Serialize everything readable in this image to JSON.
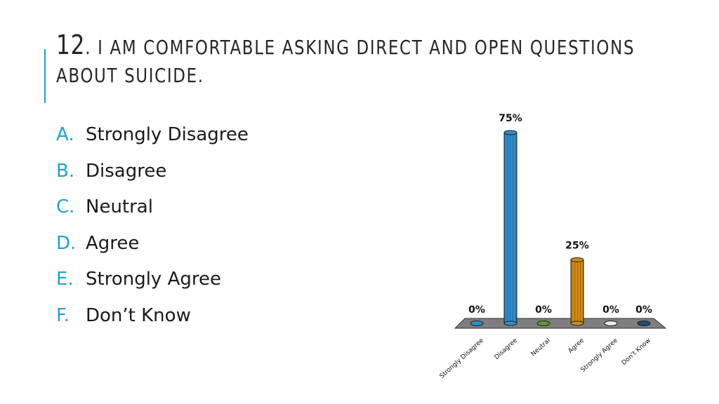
{
  "title": {
    "number": "12",
    "text": ". I am comfortable asking direct and open questions"
  },
  "title_line2": "about suicide.",
  "options": [
    {
      "letter": "A.",
      "label": "Strongly Disagree"
    },
    {
      "letter": "B.",
      "label": "Disagree"
    },
    {
      "letter": "C.",
      "label": "Neutral"
    },
    {
      "letter": "D.",
      "label": "Agree"
    },
    {
      "letter": "E.",
      "label": "Strongly Agree"
    },
    {
      "letter": "F.",
      "label": "Don’t Know"
    }
  ],
  "colors": {
    "accent": "#1fa3c9",
    "floor": "#7f7f7f"
  },
  "chart_data": {
    "type": "bar",
    "categories": [
      "Strongly Disagree",
      "Disagree",
      "Neutral",
      "Agree",
      "Strongly Agree",
      "Don’t Know"
    ],
    "values": [
      0,
      75,
      0,
      25,
      0,
      0
    ],
    "data_labels": [
      "0%",
      "75%",
      "0%",
      "25%",
      "0%",
      "0%"
    ],
    "colors": [
      "#2e8fd0",
      "#2e8fd0",
      "#5f9a2c",
      "#d68a10",
      "#e8e8e8",
      "#1f4e79"
    ],
    "ylim": [
      0,
      75
    ],
    "grid": false,
    "legend": "none",
    "xlabel": "",
    "ylabel": ""
  }
}
